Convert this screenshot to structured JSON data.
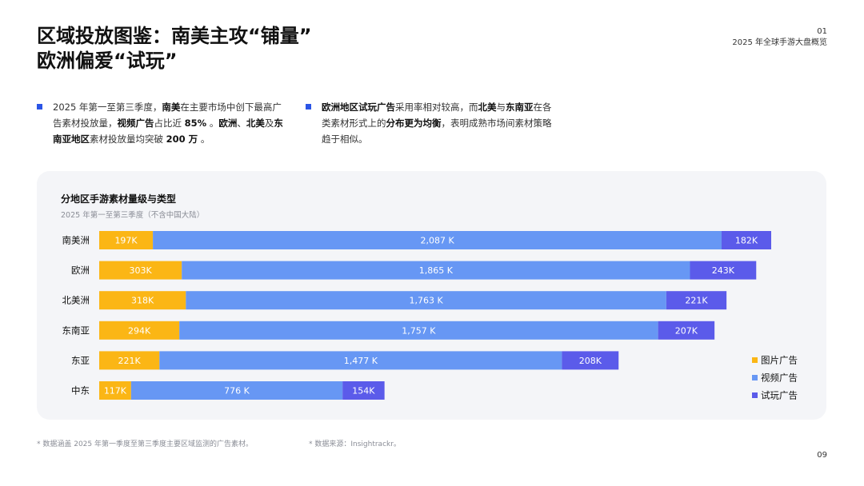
{
  "header": {
    "title_line1": "区域投放图鉴：南美主攻“铺量”",
    "title_line2": "欧洲偏爱“试玩”",
    "section_number": "01",
    "report_name": "2025 年全球手游大盘概览"
  },
  "bullets": [
    {
      "segments": [
        {
          "text": "2025 年第一至第三季度，",
          "bold": false
        },
        {
          "text": "南美",
          "bold": true
        },
        {
          "text": "在主要市场中创下最高广告素材投放量，",
          "bold": false
        },
        {
          "text": "视频广告",
          "bold": true
        },
        {
          "text": "占比近 ",
          "bold": false
        },
        {
          "text": "85%",
          "bold": true
        },
        {
          "text": " 。",
          "bold": false
        },
        {
          "text": "欧洲",
          "bold": true
        },
        {
          "text": "、",
          "bold": false
        },
        {
          "text": "北美",
          "bold": true
        },
        {
          "text": "及",
          "bold": false
        },
        {
          "text": "东南亚地区",
          "bold": true
        },
        {
          "text": "素材投放量均突破 ",
          "bold": false
        },
        {
          "text": "200 万",
          "bold": true
        },
        {
          "text": " 。",
          "bold": false
        }
      ]
    },
    {
      "segments": [
        {
          "text": "欧洲地区试玩广告",
          "bold": true
        },
        {
          "text": "采用率相对较高，而",
          "bold": false
        },
        {
          "text": "北美",
          "bold": true
        },
        {
          "text": "与",
          "bold": false
        },
        {
          "text": "东南亚",
          "bold": true
        },
        {
          "text": "在各类素材形式上的",
          "bold": false
        },
        {
          "text": "分布更为均衡",
          "bold": true
        },
        {
          "text": "，表明成熟市场间素材策略趋于相似。",
          "bold": false
        }
      ]
    }
  ],
  "chart_data": {
    "type": "bar",
    "orientation": "horizontal",
    "stacked": true,
    "title": "分地区手游素材量级与类型",
    "subtitle": "2025 年第一至第三季度（不含中国大陆）",
    "categories": [
      "南美洲",
      "欧洲",
      "北美洲",
      "东南亚",
      "东亚",
      "中东"
    ],
    "series": [
      {
        "name": "图片广告",
        "color": "#fbb615",
        "values": [
          197,
          303,
          318,
          294,
          221,
          117
        ],
        "labels": [
          "197K",
          "303K",
          "318K",
          "294K",
          "221K",
          "117K"
        ]
      },
      {
        "name": "视频广告",
        "color": "#6797f4",
        "values": [
          2087,
          1865,
          1763,
          1757,
          1477,
          776
        ],
        "labels": [
          "2,087 K",
          "1,865 K",
          "1,763 K",
          "1,757 K",
          "1,477 K",
          "776 K"
        ]
      },
      {
        "name": "试玩广告",
        "color": "#5b5bea",
        "values": [
          182,
          243,
          221,
          207,
          208,
          154
        ],
        "labels": [
          "182K",
          "243K",
          "221K",
          "207K",
          "208K",
          "154K"
        ]
      }
    ],
    "unit": "K",
    "legend_position": "bottom-right",
    "grid": false
  },
  "footnotes": {
    "scope": "* 数据涵盖 2025 年第一季度至第三季度主要区域监测的广告素材。",
    "source": "* 数据来源：Insightrackr。"
  },
  "page_number": "09"
}
